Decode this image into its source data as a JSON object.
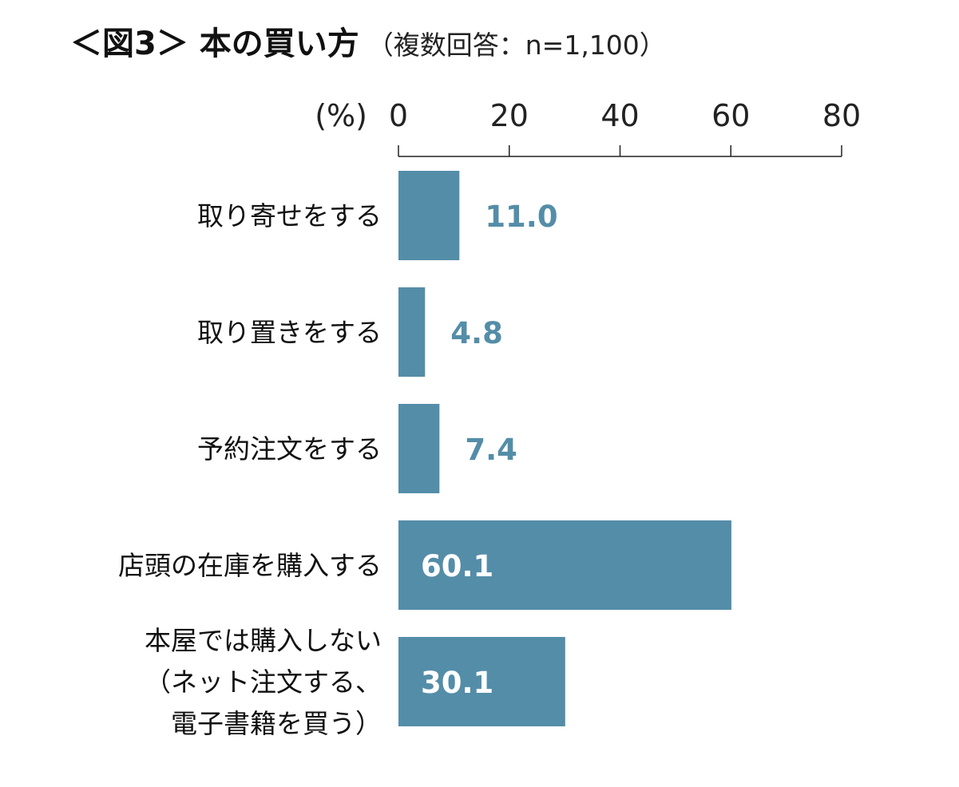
{
  "chart_data": {
    "type": "bar",
    "orientation": "horizontal",
    "title": "＜図3＞ 本の買い方",
    "subtitle": "（複数回答：n=1,100）",
    "unit_label": "(%)",
    "categories": [
      [
        "取り寄せをする"
      ],
      [
        "取り置きをする"
      ],
      [
        "予約注文をする"
      ],
      [
        "店頭の在庫を購入する"
      ],
      [
        "本屋では購入しない",
        "（ネット注文する、",
        "電子書籍を買う）"
      ]
    ],
    "values": [
      11.0,
      4.8,
      7.4,
      60.1,
      30.1
    ],
    "value_labels": [
      "11.0",
      "4.8",
      "7.4",
      "60.1",
      "30.1"
    ],
    "xlim": [
      0,
      80
    ],
    "x_ticks": [
      0,
      20,
      40,
      60,
      80
    ],
    "grid": false,
    "bar_color": "#548da8",
    "label_color": "#548da8"
  }
}
